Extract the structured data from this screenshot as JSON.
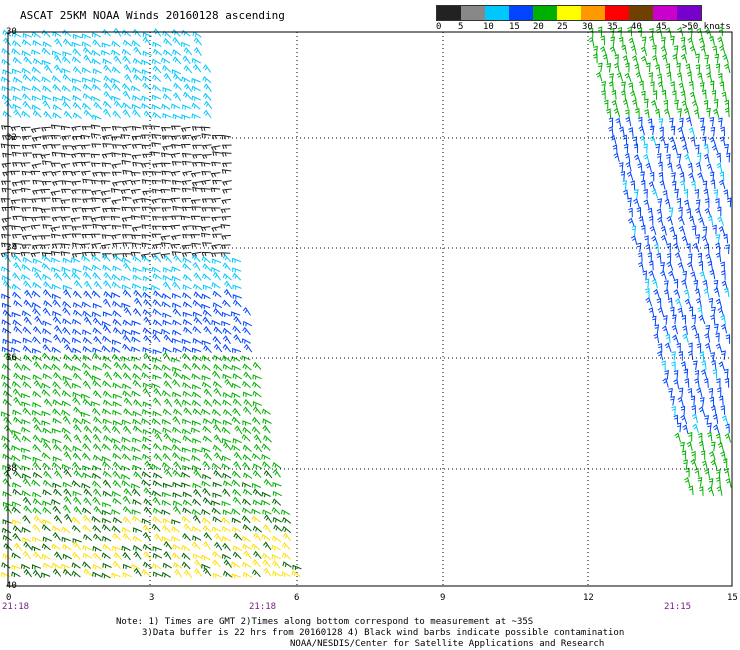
{
  "title": "ASCAT 25KM NOAA Winds 20160128 ascending",
  "color_scale": {
    "labels": [
      "0",
      "5",
      "10",
      "15",
      "20",
      "25",
      "30",
      "35",
      "40",
      "45",
      ">50 knots"
    ],
    "colors": [
      "#222222",
      "#888888",
      "#00c8ff",
      "#0044ff",
      "#00b000",
      "#ffff00",
      "#ff9900",
      "#ff0000",
      "#704000",
      "#cc00cc",
      "#7700cc"
    ]
  },
  "lat_labels": [
    "30",
    "32",
    "34",
    "36",
    "38",
    "40"
  ],
  "lon_labels": [
    "0",
    "3",
    "6",
    "9",
    "12",
    "15"
  ],
  "time_labels": [
    "21:18",
    "21:18",
    "21:15"
  ],
  "notes": [
    "Note: 1) Times are GMT 2)Times along bottom correspond to measurement at ~35S",
    "3)Data buffer is 22 hrs from 20160128 4) Black wind barbs indicate possible contamination",
    "NOAA/NESDIS/Center for Satellite Applications and Research"
  ],
  "swaths": [
    {
      "name": "west-swath"
    },
    {
      "name": "east-swath"
    }
  ]
}
